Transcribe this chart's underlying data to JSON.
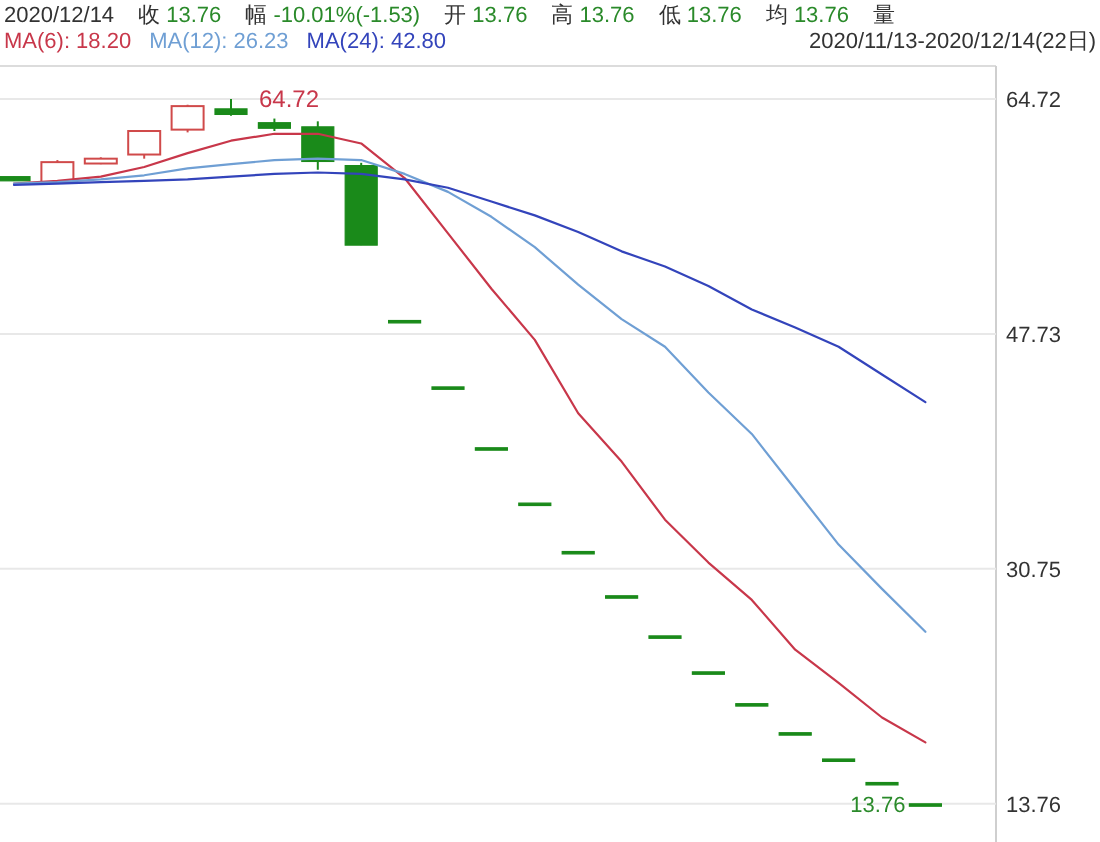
{
  "chart_data": {
    "type": "candlestick",
    "categories": [
      null,
      null,
      null,
      null,
      null,
      null,
      null,
      null,
      null,
      null,
      null,
      null,
      null,
      null,
      null,
      null,
      null,
      null,
      null,
      null,
      null,
      null
    ],
    "ohlc": [
      [
        59.1,
        59.1,
        58.8,
        58.8
      ],
      [
        58.7,
        60.3,
        58.6,
        60.15
      ],
      [
        60.05,
        60.5,
        60.0,
        60.4
      ],
      [
        60.7,
        62.4,
        60.4,
        62.4
      ],
      [
        62.5,
        64.3,
        62.3,
        64.2
      ],
      [
        64.0,
        64.72,
        63.5,
        63.6
      ],
      [
        63.0,
        63.3,
        62.4,
        62.6
      ],
      [
        62.7,
        63.1,
        59.6,
        60.2
      ],
      [
        59.9,
        60.1,
        54.15,
        54.15
      ],
      [
        48.7,
        48.7,
        48.7,
        48.7
      ],
      [
        43.9,
        43.9,
        43.9,
        43.9
      ],
      [
        39.5,
        39.5,
        39.5,
        39.5
      ],
      [
        35.5,
        35.5,
        35.5,
        35.5
      ],
      [
        32.0,
        32.0,
        32.0,
        32.0
      ],
      [
        28.8,
        28.8,
        28.8,
        28.8
      ],
      [
        25.9,
        25.9,
        25.9,
        25.9
      ],
      [
        23.3,
        23.3,
        23.3,
        23.3
      ],
      [
        21.0,
        21.0,
        21.0,
        21.0
      ],
      [
        18.9,
        18.9,
        18.9,
        18.9
      ],
      [
        17.0,
        17.0,
        17.0,
        17.0
      ],
      [
        15.3,
        15.3,
        15.3,
        15.3
      ],
      [
        13.76,
        13.76,
        13.76,
        13.76
      ]
    ],
    "colors": [
      "#1a8a1a",
      "#d04a4a",
      "#d04a4a",
      "#d04a4a",
      "#d04a4a",
      "#1a8a1a",
      "#1a8a1a",
      "#1a8a1a",
      "#1a8a1a",
      "#1a8a1a",
      "#1a8a1a",
      "#1a8a1a",
      "#1a8a1a",
      "#1a8a1a",
      "#1a8a1a",
      "#1a8a1a",
      "#1a8a1a",
      "#1a8a1a",
      "#1a8a1a",
      "#1a8a1a",
      "#1a8a1a",
      "#1a8a1a"
    ],
    "series": [
      {
        "type": "line",
        "name": "MA(6): 18.20",
        "color": "#c8374a",
        "values": [
          58.6,
          58.8,
          59.1,
          59.8,
          60.8,
          61.7,
          62.2,
          62.2,
          61.5,
          59.0,
          55.0,
          51.0,
          47.3,
          42.0,
          38.5,
          34.3,
          31.2,
          28.5,
          24.9,
          22.5,
          20.0,
          18.2
        ]
      },
      {
        "type": "line",
        "name": "MA(12): 26.23",
        "color": "#6f9fd4",
        "values": [
          58.6,
          58.7,
          58.9,
          59.2,
          59.7,
          60.0,
          60.3,
          60.4,
          60.3,
          59.3,
          58.0,
          56.2,
          54.0,
          51.3,
          48.8,
          46.8,
          43.5,
          40.5,
          36.5,
          32.5,
          29.3,
          26.2
        ]
      },
      {
        "type": "line",
        "name": "MA(24): 42.80",
        "color": "#3344bb",
        "values": [
          58.5,
          58.6,
          58.7,
          58.8,
          58.9,
          59.1,
          59.3,
          59.4,
          59.3,
          58.9,
          58.3,
          57.3,
          56.3,
          55.1,
          53.7,
          52.6,
          51.2,
          49.5,
          48.2,
          46.8,
          44.8,
          42.8
        ]
      }
    ],
    "ylim": [
      11.0,
      67.1
    ],
    "yticks": [
      13.76,
      30.75,
      47.73,
      64.72
    ],
    "grid": "y",
    "legend": "top left",
    "annotations": [
      "2020/12/14",
      "收 13.76",
      "幅 -10.01%(-1.53)",
      "开 13.76",
      "高 13.76",
      "低 13.76",
      "均 13.76",
      "量",
      "2020/11/13-2020/12/14(22日)",
      "64.72",
      "13.76"
    ]
  }
}
